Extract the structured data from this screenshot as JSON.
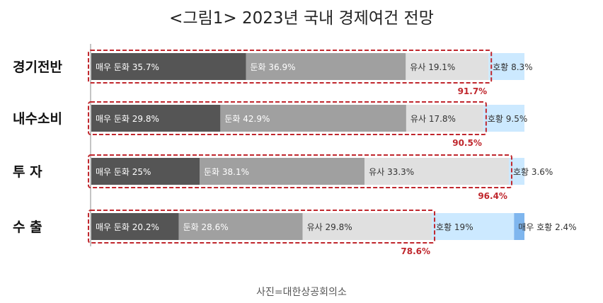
{
  "title": "<그림1> 2023년 국내 경제여건 전망",
  "caption": "사진=대한상공회의소",
  "colors": {
    "매우 둔화": "#555555",
    "둔화": "#a0a0a0",
    "유사": "#e0e0e0",
    "호황": "#cce9ff",
    "매우 호황": "#7fb6ee",
    "highlight": "#c0272d"
  },
  "chart_data": {
    "type": "bar",
    "orientation": "horizontal",
    "stacked": true,
    "categories": [
      "경기전반",
      "내수소비",
      "투     자",
      "수     출"
    ],
    "series": [
      {
        "name": "매우 둔화",
        "values": [
          35.7,
          29.8,
          25,
          20.2
        ]
      },
      {
        "name": "둔화",
        "values": [
          36.9,
          42.9,
          38.1,
          28.6
        ]
      },
      {
        "name": "유사",
        "values": [
          19.1,
          17.8,
          33.3,
          29.8
        ]
      },
      {
        "name": "호황",
        "values": [
          8.3,
          9.5,
          3.6,
          19
        ]
      },
      {
        "name": "매우 호황",
        "values": [
          0,
          0,
          0,
          2.4
        ]
      }
    ],
    "labels": [
      [
        "매우 둔화 35.7%",
        "둔화 36.9%",
        "유사 19.1%",
        "호황 8.3%",
        ""
      ],
      [
        "매우 둔화 29.8%",
        "둔화 42.9%",
        "유사 17.8%",
        "호황 9.5%",
        ""
      ],
      [
        "매우 둔화 25%",
        "둔화 38.1%",
        "유사 33.3%",
        "호황 3.6%",
        ""
      ],
      [
        "매우 둔화 20.2%",
        "둔화 28.6%",
        "유사 29.8%",
        "호황 19%",
        "매우 호황 2.4%"
      ]
    ],
    "highlight_totals": [
      "91.7%",
      "90.5%",
      "96.4%",
      "78.6%"
    ],
    "xlim": [
      0,
      100
    ]
  }
}
